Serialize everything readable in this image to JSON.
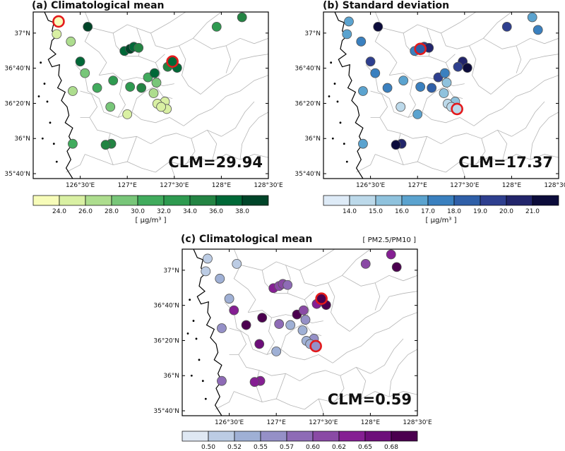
{
  "chart_data": [
    {
      "type": "scatter",
      "title": "(a) Climatological mean",
      "annotation": "CLM=29.94",
      "x_ticks": [
        "126°30'E",
        "127°E",
        "127°30'E",
        "128°E",
        "128°30'E"
      ],
      "y_ticks": [
        "37°N",
        "36°40'N",
        "36°20'N",
        "36°N",
        "35°40'N"
      ],
      "xlim": [
        126.0,
        128.5
      ],
      "ylim": [
        35.62,
        37.2
      ],
      "colorbar": {
        "ticks": [
          "24.0",
          "26.0",
          "28.0",
          "30.0",
          "32.0",
          "34.0",
          "36.0",
          "38.0"
        ],
        "colors": [
          "#f7fcb9",
          "#d9f0a3",
          "#addd8e",
          "#78c679",
          "#41ab5d",
          "#2e9a50",
          "#238443",
          "#006837",
          "#004529"
        ],
        "unit": "[ μg/m³ ]"
      },
      "highlight_color": "#e31a1c",
      "points": [
        {
          "lon": 126.27,
          "lat": 37.11,
          "v": 23.5
        },
        {
          "lon": 126.25,
          "lat": 36.99,
          "v": 24.3
        },
        {
          "lon": 126.4,
          "lat": 36.92,
          "v": 27.0
        },
        {
          "lon": 126.58,
          "lat": 37.06,
          "v": 38.5
        },
        {
          "lon": 126.5,
          "lat": 36.73,
          "v": 36.0
        },
        {
          "lon": 126.55,
          "lat": 36.62,
          "v": 29.0
        },
        {
          "lon": 126.42,
          "lat": 36.45,
          "v": 27.5
        },
        {
          "lon": 126.68,
          "lat": 36.48,
          "v": 30.0
        },
        {
          "lon": 126.82,
          "lat": 36.3,
          "v": 29.0
        },
        {
          "lon": 126.42,
          "lat": 35.95,
          "v": 31.0
        },
        {
          "lon": 126.83,
          "lat": 35.95,
          "v": 35.0
        },
        {
          "lon": 126.77,
          "lat": 35.94,
          "v": 34.5
        },
        {
          "lon": 126.85,
          "lat": 36.55,
          "v": 33.0
        },
        {
          "lon": 126.97,
          "lat": 36.83,
          "v": 37.0
        },
        {
          "lon": 127.03,
          "lat": 36.85,
          "v": 38.0
        },
        {
          "lon": 127.07,
          "lat": 36.87,
          "v": 36.5
        },
        {
          "lon": 127.12,
          "lat": 36.86,
          "v": 35.0
        },
        {
          "lon": 127.03,
          "lat": 36.49,
          "v": 32.5
        },
        {
          "lon": 127.0,
          "lat": 36.23,
          "v": 25.5
        },
        {
          "lon": 127.15,
          "lat": 36.48,
          "v": 34.0
        },
        {
          "lon": 127.22,
          "lat": 36.58,
          "v": 31.0
        },
        {
          "lon": 127.29,
          "lat": 36.62,
          "v": 36.5
        },
        {
          "lon": 127.31,
          "lat": 36.53,
          "v": 28.0
        },
        {
          "lon": 127.28,
          "lat": 36.43,
          "v": 26.0
        },
        {
          "lon": 127.4,
          "lat": 36.35,
          "v": 24.5
        },
        {
          "lon": 127.32,
          "lat": 36.33,
          "v": 24.0
        },
        {
          "lon": 127.42,
          "lat": 36.28,
          "v": 24.5
        },
        {
          "lon": 127.36,
          "lat": 36.3,
          "v": 25.0
        },
        {
          "lon": 127.48,
          "lat": 36.73,
          "v": 37.5
        },
        {
          "lon": 127.53,
          "lat": 36.67,
          "v": 36.0
        },
        {
          "lon": 127.43,
          "lat": 36.68,
          "v": 35.0
        },
        {
          "lon": 127.95,
          "lat": 37.06,
          "v": 32.0
        },
        {
          "lon": 128.22,
          "lat": 37.15,
          "v": 34.0
        }
      ],
      "highlights": [
        {
          "lon": 126.27,
          "lat": 37.11,
          "v": 23.5
        },
        {
          "lon": 127.48,
          "lat": 36.73,
          "v": 37.5
        }
      ]
    },
    {
      "type": "scatter",
      "title": "(b) Standard deviation",
      "annotation": "CLM=17.37",
      "x_ticks": [
        "126°30'E",
        "127°E",
        "127°30'E",
        "128°E",
        "128°30'E"
      ],
      "y_ticks": [
        "37°N",
        "36°40'N",
        "36°20'N",
        "36°N",
        "35°40'N"
      ],
      "xlim": [
        126.0,
        128.5
      ],
      "ylim": [
        35.62,
        37.2
      ],
      "colorbar": {
        "ticks": [
          "14.0",
          "15.0",
          "16.0",
          "17.0",
          "18.0",
          "19.0",
          "20.0",
          "21.0"
        ],
        "colors": [
          "#deebf7",
          "#bcd9ea",
          "#8fc2dd",
          "#5ba3cf",
          "#3a80bf",
          "#2f5fa8",
          "#2e3f8f",
          "#22256b",
          "#0c0c3b"
        ],
        "unit": "[ μg/m³ ]"
      },
      "highlight_color": "#e31a1c",
      "points": [
        {
          "lon": 126.27,
          "lat": 37.11,
          "v": 16.5
        },
        {
          "lon": 126.25,
          "lat": 36.99,
          "v": 16.0
        },
        {
          "lon": 126.4,
          "lat": 36.92,
          "v": 17.0
        },
        {
          "lon": 126.58,
          "lat": 37.06,
          "v": 21.0
        },
        {
          "lon": 126.5,
          "lat": 36.73,
          "v": 19.0
        },
        {
          "lon": 126.55,
          "lat": 36.62,
          "v": 17.0
        },
        {
          "lon": 126.42,
          "lat": 36.45,
          "v": 16.5
        },
        {
          "lon": 126.68,
          "lat": 36.48,
          "v": 17.5
        },
        {
          "lon": 126.82,
          "lat": 36.3,
          "v": 14.5
        },
        {
          "lon": 126.42,
          "lat": 35.95,
          "v": 16.5
        },
        {
          "lon": 126.83,
          "lat": 35.95,
          "v": 20.0
        },
        {
          "lon": 126.77,
          "lat": 35.94,
          "v": 21.5
        },
        {
          "lon": 126.85,
          "lat": 36.55,
          "v": 16.0
        },
        {
          "lon": 126.97,
          "lat": 36.83,
          "v": 17.5
        },
        {
          "lon": 127.03,
          "lat": 36.85,
          "v": 18.0
        },
        {
          "lon": 127.07,
          "lat": 36.87,
          "v": 19.5
        },
        {
          "lon": 127.12,
          "lat": 36.86,
          "v": 20.5
        },
        {
          "lon": 127.03,
          "lat": 36.49,
          "v": 17.0
        },
        {
          "lon": 127.0,
          "lat": 36.23,
          "v": 16.0
        },
        {
          "lon": 127.15,
          "lat": 36.48,
          "v": 18.5
        },
        {
          "lon": 127.22,
          "lat": 36.58,
          "v": 19.0
        },
        {
          "lon": 127.29,
          "lat": 36.62,
          "v": 17.5
        },
        {
          "lon": 127.31,
          "lat": 36.53,
          "v": 15.5
        },
        {
          "lon": 127.28,
          "lat": 36.43,
          "v": 15.0
        },
        {
          "lon": 127.4,
          "lat": 36.35,
          "v": 15.5
        },
        {
          "lon": 127.32,
          "lat": 36.33,
          "v": 14.5
        },
        {
          "lon": 127.42,
          "lat": 36.28,
          "v": 14.0
        },
        {
          "lon": 127.36,
          "lat": 36.3,
          "v": 14.5
        },
        {
          "lon": 127.48,
          "lat": 36.73,
          "v": 20.5
        },
        {
          "lon": 127.53,
          "lat": 36.67,
          "v": 21.5
        },
        {
          "lon": 127.43,
          "lat": 36.68,
          "v": 19.5
        },
        {
          "lon": 127.95,
          "lat": 37.06,
          "v": 19.0
        },
        {
          "lon": 128.22,
          "lat": 37.15,
          "v": 16.0
        },
        {
          "lon": 128.28,
          "lat": 37.03,
          "v": 17.5
        }
      ],
      "highlights": [
        {
          "lon": 127.03,
          "lat": 36.85,
          "v": 18.0
        },
        {
          "lon": 127.42,
          "lat": 36.28,
          "v": 14.0
        }
      ]
    },
    {
      "type": "scatter",
      "title": "(c) Climatological mean",
      "header_label": "[ PM2.5/PM10 ]",
      "annotation": "CLM=0.59",
      "x_ticks": [
        "126°30'E",
        "127°E",
        "127°30'E",
        "128°E",
        "128°30'E"
      ],
      "y_ticks": [
        "37°N",
        "36°40'N",
        "36°20'N",
        "36°N",
        "35°40'N"
      ],
      "xlim": [
        126.0,
        128.5
      ],
      "ylim": [
        35.62,
        37.2
      ],
      "colorbar": {
        "ticks": [
          "0.50",
          "0.52",
          "0.55",
          "0.57",
          "0.60",
          "0.62",
          "0.65",
          "0.68"
        ],
        "colors": [
          "#dfe8f3",
          "#bccce4",
          "#9fb0d5",
          "#9590c7",
          "#8e6bb6",
          "#8a4aa5",
          "#851f93",
          "#6d0e7a",
          "#4b004f"
        ]
      },
      "highlight_color": "#e31a1c",
      "points": [
        {
          "lon": 126.27,
          "lat": 37.11,
          "v": 0.51
        },
        {
          "lon": 126.25,
          "lat": 36.99,
          "v": 0.5
        },
        {
          "lon": 126.4,
          "lat": 36.92,
          "v": 0.53
        },
        {
          "lon": 126.58,
          "lat": 37.06,
          "v": 0.51
        },
        {
          "lon": 126.5,
          "lat": 36.73,
          "v": 0.54
        },
        {
          "lon": 126.55,
          "lat": 36.62,
          "v": 0.62
        },
        {
          "lon": 126.42,
          "lat": 36.45,
          "v": 0.55
        },
        {
          "lon": 126.68,
          "lat": 36.48,
          "v": 0.7
        },
        {
          "lon": 126.82,
          "lat": 36.3,
          "v": 0.67
        },
        {
          "lon": 126.42,
          "lat": 35.95,
          "v": 0.58
        },
        {
          "lon": 126.83,
          "lat": 35.95,
          "v": 0.63
        },
        {
          "lon": 126.77,
          "lat": 35.94,
          "v": 0.62
        },
        {
          "lon": 126.85,
          "lat": 36.55,
          "v": 0.69
        },
        {
          "lon": 126.97,
          "lat": 36.83,
          "v": 0.64
        },
        {
          "lon": 127.03,
          "lat": 36.85,
          "v": 0.61
        },
        {
          "lon": 127.07,
          "lat": 36.87,
          "v": 0.6
        },
        {
          "lon": 127.12,
          "lat": 36.86,
          "v": 0.59
        },
        {
          "lon": 127.03,
          "lat": 36.49,
          "v": 0.57
        },
        {
          "lon": 127.0,
          "lat": 36.23,
          "v": 0.52
        },
        {
          "lon": 127.15,
          "lat": 36.48,
          "v": 0.53
        },
        {
          "lon": 127.22,
          "lat": 36.58,
          "v": 0.7
        },
        {
          "lon": 127.29,
          "lat": 36.62,
          "v": 0.61
        },
        {
          "lon": 127.31,
          "lat": 36.53,
          "v": 0.55
        },
        {
          "lon": 127.28,
          "lat": 36.43,
          "v": 0.52
        },
        {
          "lon": 127.4,
          "lat": 36.35,
          "v": 0.55
        },
        {
          "lon": 127.32,
          "lat": 36.33,
          "v": 0.54
        },
        {
          "lon": 127.42,
          "lat": 36.28,
          "v": 0.56
        },
        {
          "lon": 127.36,
          "lat": 36.3,
          "v": 0.53
        },
        {
          "lon": 127.48,
          "lat": 36.73,
          "v": 0.68
        },
        {
          "lon": 127.53,
          "lat": 36.67,
          "v": 0.72
        },
        {
          "lon": 127.43,
          "lat": 36.68,
          "v": 0.64
        },
        {
          "lon": 127.95,
          "lat": 37.06,
          "v": 0.6
        },
        {
          "lon": 128.22,
          "lat": 37.15,
          "v": 0.63
        },
        {
          "lon": 128.28,
          "lat": 37.03,
          "v": 0.72
        }
      ],
      "highlights": [
        {
          "lon": 127.48,
          "lat": 36.73,
          "v": 0.68
        },
        {
          "lon": 127.42,
          "lat": 36.28,
          "v": 0.56
        }
      ]
    }
  ]
}
